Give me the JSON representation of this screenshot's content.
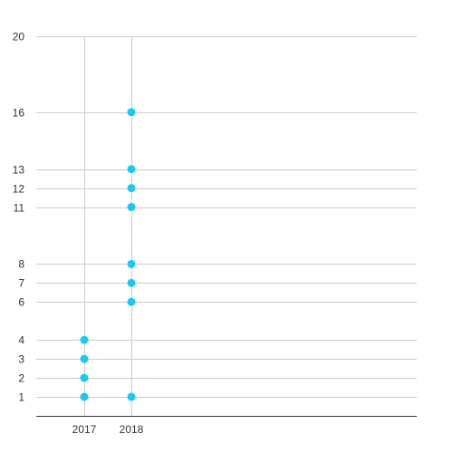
{
  "chart_data": {
    "type": "scatter",
    "title": "",
    "xlabel": "",
    "ylabel": "",
    "x_categories": [
      "2017",
      "2018"
    ],
    "y_ticks": [
      1,
      2,
      3,
      4,
      6,
      7,
      8,
      11,
      12,
      13,
      16,
      20
    ],
    "ylim": [
      0,
      20
    ],
    "grid": true,
    "legend": "none",
    "series": [
      {
        "points": [
          {
            "x": "2017",
            "y": 1
          },
          {
            "x": "2017",
            "y": 2
          },
          {
            "x": "2017",
            "y": 3
          },
          {
            "x": "2017",
            "y": 4
          },
          {
            "x": "2018",
            "y": 1
          },
          {
            "x": "2018",
            "y": 6
          },
          {
            "x": "2018",
            "y": 7
          },
          {
            "x": "2018",
            "y": 8
          },
          {
            "x": "2018",
            "y": 11
          },
          {
            "x": "2018",
            "y": 12
          },
          {
            "x": "2018",
            "y": 13
          },
          {
            "x": "2018",
            "y": 16
          }
        ]
      }
    ],
    "colors": {
      "point": "#1ac9f0",
      "grid": "#cccccc",
      "axis": "#333333",
      "text": "#333333"
    }
  }
}
